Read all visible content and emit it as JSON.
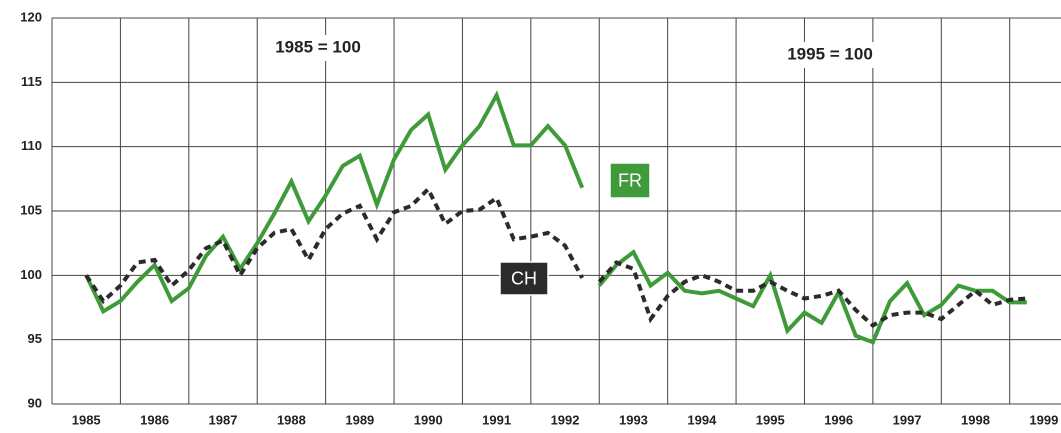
{
  "chart_data": {
    "type": "line",
    "xlim": [
      1985,
      1999.75
    ],
    "ylim": [
      90,
      120
    ],
    "xticks": [
      1985,
      1986,
      1987,
      1988,
      1989,
      1990,
      1991,
      1992,
      1993,
      1994,
      1995,
      1996,
      1997,
      1998,
      1999
    ],
    "yticks": [
      90,
      95,
      100,
      105,
      110,
      115,
      120
    ],
    "grid": true,
    "segments": [
      {
        "annotation": "1985 = 100",
        "x": [
          1985.5,
          1985.75,
          1986,
          1986.25,
          1986.5,
          1986.75,
          1987,
          1987.25,
          1987.5,
          1987.75,
          1988,
          1988.25,
          1988.5,
          1988.75,
          1989,
          1989.25,
          1989.5,
          1989.75,
          1990,
          1990.25,
          1990.5,
          1990.75,
          1991,
          1991.25,
          1991.5,
          1991.75,
          1992,
          1992.25,
          1992.5,
          1992.75
        ]
      },
      {
        "annotation": "1995 = 100",
        "x": [
          1993,
          1993.25,
          1993.5,
          1993.75,
          1994,
          1994.25,
          1994.5,
          1994.75,
          1995,
          1995.25,
          1995.5,
          1995.75,
          1996,
          1996.25,
          1996.5,
          1996.75,
          1997,
          1997.25,
          1997.5,
          1997.75,
          1998,
          1998.25,
          1998.5,
          1998.75,
          1999,
          1999.25
        ]
      }
    ],
    "series": [
      {
        "name": "FR",
        "color": "#3f9b3a",
        "style": "solid",
        "values": [
          [
            100,
            97.2,
            98,
            99.5,
            100.8,
            98,
            99,
            101.5,
            103,
            100.5,
            102.5,
            104.8,
            107.3,
            104.2,
            106.2,
            108.5,
            109.3,
            105.5,
            109,
            111.3,
            112.5,
            108.2,
            110.1,
            111.6,
            114,
            110.1,
            110.1,
            111.6,
            110.1,
            106.8
          ],
          [
            99.2,
            100.8,
            101.8,
            99.2,
            100.2,
            98.8,
            98.6,
            98.8,
            98.2,
            97.6,
            100,
            95.7,
            97.1,
            96.3,
            98.7,
            95.3,
            94.8,
            98,
            99.4,
            96.9,
            97.7,
            99.2,
            98.8,
            98.8,
            97.9,
            97.9
          ]
        ]
      },
      {
        "name": "CH",
        "color": "#2b2b2b",
        "style": "dashed",
        "values": [
          [
            100,
            98,
            99.2,
            101,
            101.2,
            99.2,
            100.4,
            102.1,
            102.7,
            100,
            102.1,
            103.3,
            103.6,
            101.2,
            103.6,
            104.8,
            105.4,
            102.8,
            104.9,
            105.4,
            106.7,
            104,
            105,
            105.1,
            106,
            102.8,
            103,
            103.3,
            102.3,
            99.8
          ],
          [
            99.5,
            101,
            100.5,
            96.6,
            98.4,
            99.5,
            100,
            99.5,
            98.8,
            98.8,
            99.5,
            98.8,
            98.2,
            98.4,
            98.8,
            97.3,
            96.1,
            96.9,
            97.1,
            97.1,
            96.6,
            97.7,
            98.8,
            97.7,
            98.1,
            98.2
          ]
        ]
      }
    ]
  }
}
